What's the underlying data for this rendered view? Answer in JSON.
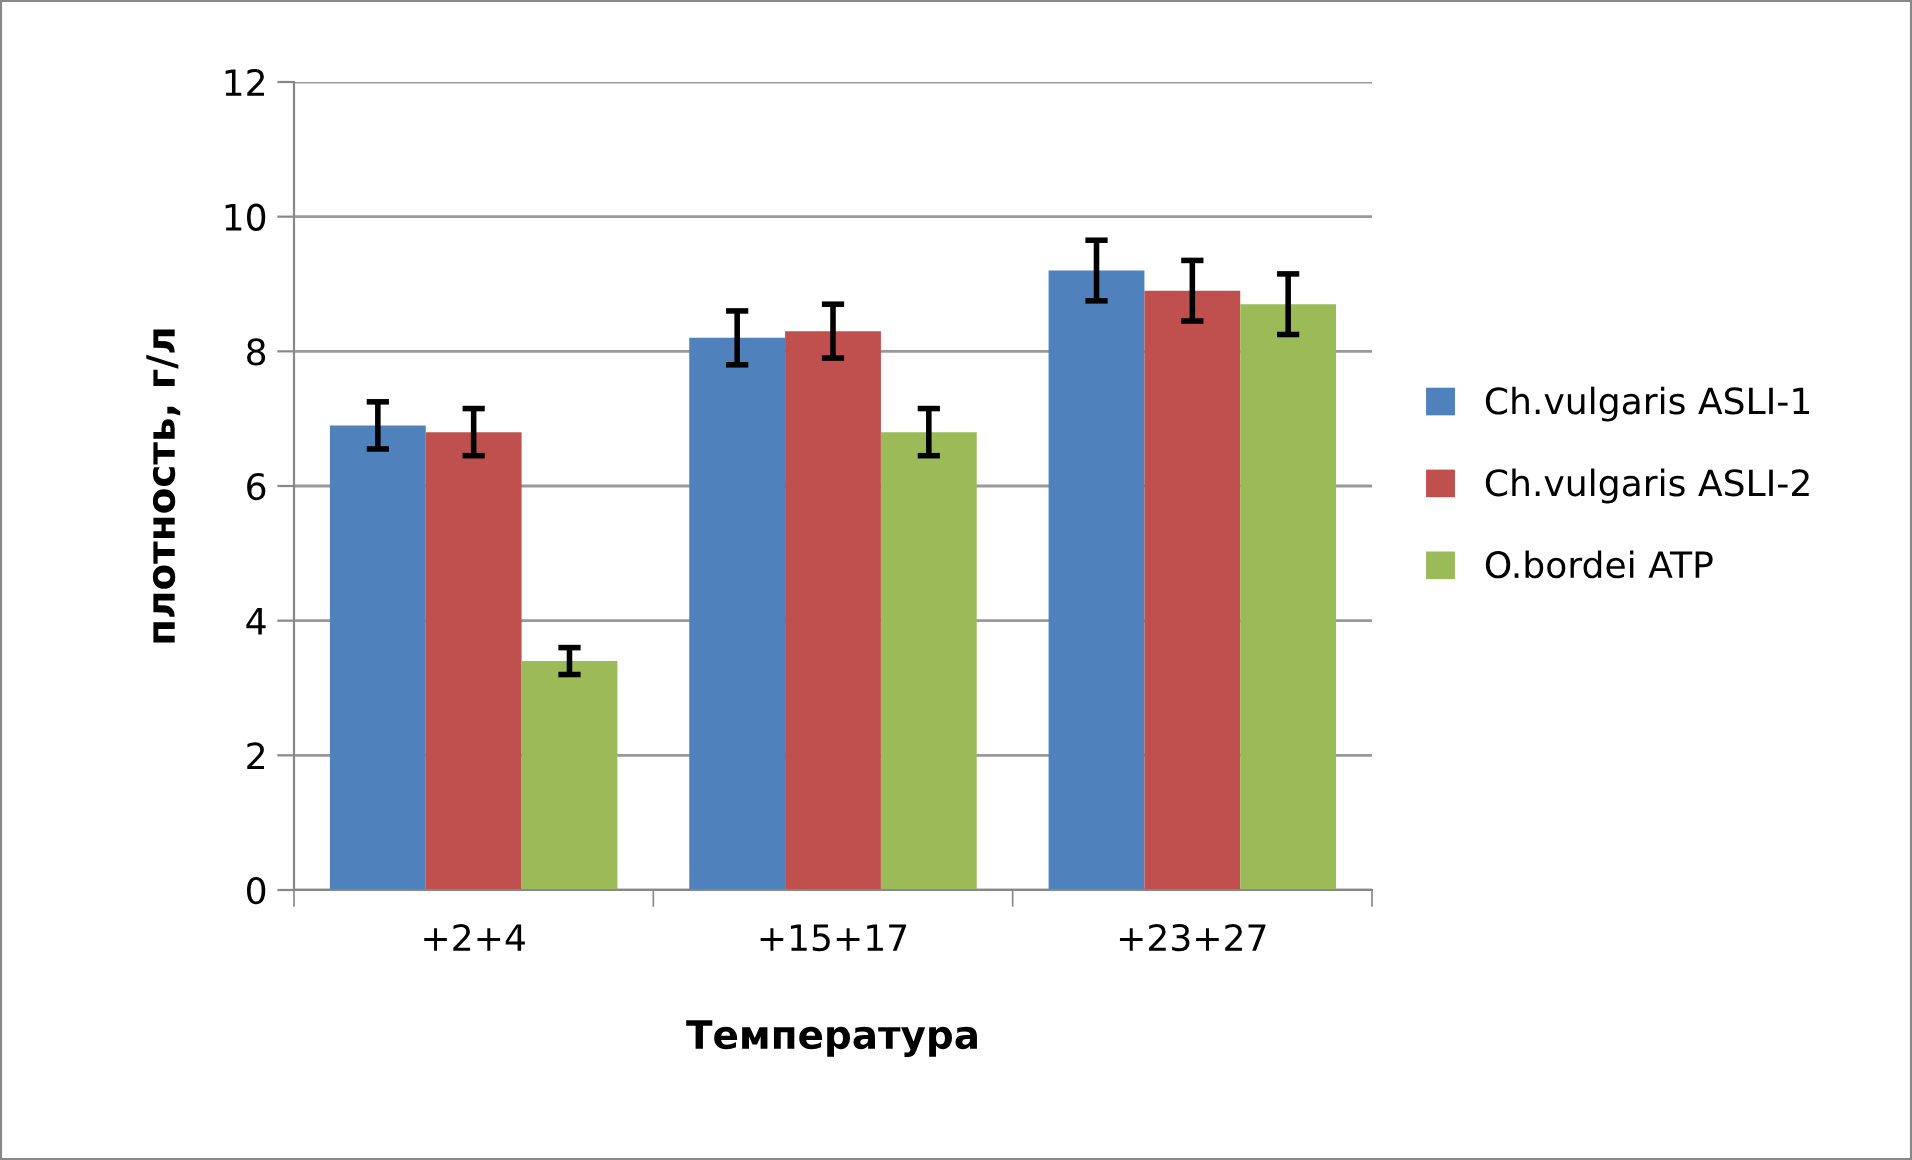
{
  "chart_data": {
    "type": "bar",
    "xlabel": "Температура",
    "ylabel": "плотность, г/л",
    "categories": [
      "+2+4",
      "+15+17",
      "+23+27"
    ],
    "series": [
      {
        "name": "Ch.vulgaris ASLI-1",
        "color": "#4f81bd",
        "values": [
          6.9,
          8.2,
          9.2
        ],
        "errors": [
          0.35,
          0.4,
          0.45
        ]
      },
      {
        "name": "Ch.vulgaris ASLI-2",
        "color": "#c0504d",
        "values": [
          6.8,
          8.3,
          8.9
        ],
        "errors": [
          0.35,
          0.4,
          0.45
        ]
      },
      {
        "name": "O.bordei ATP",
        "color": "#9bbb59",
        "values": [
          3.4,
          6.8,
          8.7
        ],
        "errors": [
          0.2,
          0.35,
          0.45
        ]
      }
    ],
    "ylim": [
      0,
      12
    ],
    "yticks": [
      0,
      2,
      4,
      6,
      8,
      10,
      12
    ],
    "grid": "y",
    "legend": "right"
  }
}
